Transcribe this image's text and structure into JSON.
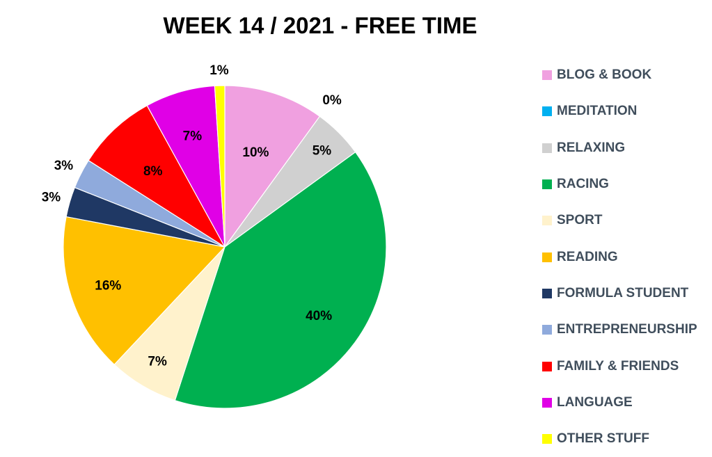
{
  "chart_data": {
    "type": "pie",
    "title": "WEEK 14 / 2021 - FREE TIME",
    "legend_position": "right",
    "start": "top, clockwise",
    "slices": [
      {
        "label": "BLOG & BOOK",
        "value": 10,
        "value_label": "10%",
        "color": "#f0a0e0"
      },
      {
        "label": "MEDITATION",
        "value": 0,
        "value_label": "0%",
        "color": "#00b0f0"
      },
      {
        "label": "RELAXING",
        "value": 5,
        "value_label": "5%",
        "color": "#d0d0d0"
      },
      {
        "label": "RACING",
        "value": 40,
        "value_label": "40%",
        "color": "#00b050"
      },
      {
        "label": "SPORT",
        "value": 7,
        "value_label": "7%",
        "color": "#fff2cc"
      },
      {
        "label": "READING",
        "value": 16,
        "value_label": "16%",
        "color": "#ffc000"
      },
      {
        "label": "FORMULA STUDENT",
        "value": 3,
        "value_label": "3%",
        "color": "#1f3864"
      },
      {
        "label": "ENTREPRENEURSHIP",
        "value": 3,
        "value_label": "3%",
        "color": "#8faadc"
      },
      {
        "label": "FAMILY & FRIENDS",
        "value": 8,
        "value_label": "8%",
        "color": "#ff0000"
      },
      {
        "label": "LANGUAGE",
        "value": 7,
        "value_label": "7%",
        "color": "#e000e6"
      },
      {
        "label": "OTHER STUFF",
        "value": 1,
        "value_label": "1%",
        "color": "#ffff00"
      }
    ]
  }
}
